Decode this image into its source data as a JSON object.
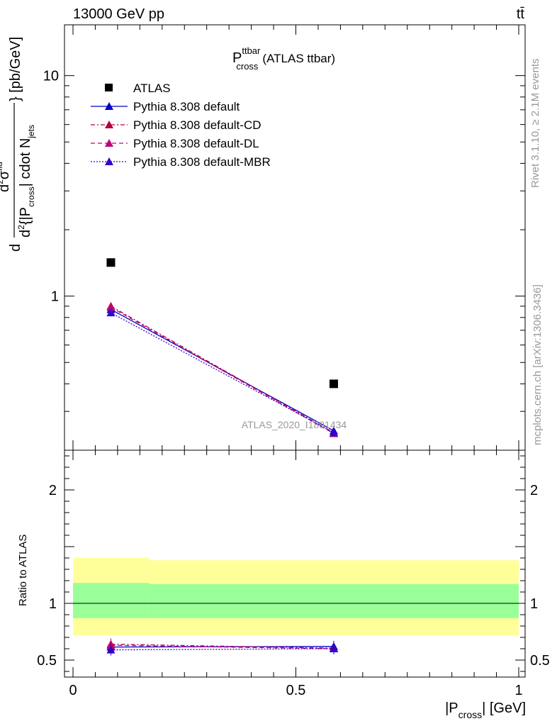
{
  "header": {
    "left": "13000 GeV pp",
    "right": "tt̄"
  },
  "title": {
    "main": "P",
    "sup": "ttbar",
    "sub": "cross",
    "suffix": "(ATLAS ttbar)"
  },
  "side_text": {
    "rivet": "Rivet 3.1.10, ≥ 2.1M events",
    "mcplots": "mcplots.cern.ch [arXiv:1306.3436]"
  },
  "watermark": "ATLAS_2020_I1801434",
  "ylabel": {
    "frac_num_d": "d",
    "frac_num_sup": "2",
    "frac_num_sigma": "σ",
    "frac_num_sigma_sup": "fid",
    "frac_den": "d",
    "frac_den_sup": "2",
    "frac_den_rest_a": "{|P",
    "frac_den_rest_sub": "cross",
    "frac_den_rest_b": "| cdot N",
    "frac_den_rest_sub2": "jets",
    "tail": "} [pb/GeV]"
  },
  "ratio_ylabel": "Ratio to ATLAS",
  "xlabel": {
    "a": "|P",
    "sub": "cross",
    "b": "| [GeV]"
  },
  "colors": {
    "atlas": "#000000",
    "default": "#0000cc",
    "cd": "#b00040",
    "dl": "#c0007a",
    "mbr": "#3300cc",
    "band_outer": "#ffff99",
    "band_inner": "#99ff99"
  },
  "chart_data": {
    "type": "scatter",
    "x_axis": {
      "range": [
        0,
        1
      ],
      "ticks": [
        "0",
        "0.5",
        "1"
      ]
    },
    "main_y_axis": {
      "scale": "log",
      "range": [
        0.2,
        17
      ],
      "ticks": [
        "1",
        "10"
      ]
    },
    "ratio_y_axis": {
      "range": [
        0.35,
        2.35
      ],
      "ticks": [
        "0.5",
        "1",
        "2"
      ]
    },
    "x": [
      0.085,
      0.585
    ],
    "bin_edges": [
      0,
      0.17,
      1
    ],
    "legend": [
      {
        "label": "ATLAS",
        "style": "square"
      },
      {
        "label": "Pythia 8.308 default",
        "style": "solid"
      },
      {
        "label": "Pythia 8.308 default-CD",
        "style": "dashdot"
      },
      {
        "label": "Pythia 8.308 default-DL",
        "style": "dash"
      },
      {
        "label": "Pythia 8.308 default-MBR",
        "style": "dot"
      }
    ],
    "atlas": {
      "values": [
        1.42,
        0.4
      ]
    },
    "series": [
      {
        "name": "Pythia 8.308 default",
        "values": [
          0.87,
          0.245
        ]
      },
      {
        "name": "Pythia 8.308 default-CD",
        "values": [
          0.9,
          0.24
        ]
      },
      {
        "name": "Pythia 8.308 default-DL",
        "values": [
          0.89,
          0.238
        ]
      },
      {
        "name": "Pythia 8.308 default-MBR",
        "values": [
          0.84,
          0.24
        ]
      }
    ],
    "ratio_series": [
      {
        "name": "Pythia 8.308 default",
        "values": [
          0.615,
          0.62
        ]
      },
      {
        "name": "Pythia 8.308 default-CD",
        "values": [
          0.64,
          0.605
        ]
      },
      {
        "name": "Pythia 8.308 default-DL",
        "values": [
          0.63,
          0.6
        ]
      },
      {
        "name": "Pythia 8.308 default-MBR",
        "values": [
          0.59,
          0.6
        ]
      }
    ],
    "ratio_band": {
      "outer": [
        [
          0.72,
          1.4
        ],
        [
          0.72,
          1.38
        ]
      ],
      "inner": [
        [
          0.87,
          1.18
        ],
        [
          0.87,
          1.17
        ]
      ]
    }
  }
}
